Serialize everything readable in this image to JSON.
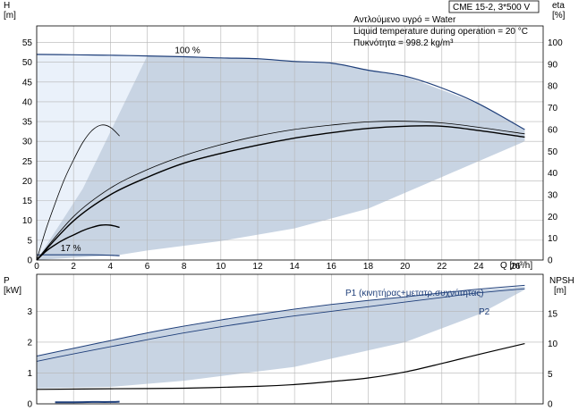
{
  "chart_data": [
    {
      "type": "line",
      "panel": "head-efficiency",
      "title_box": "CME 15-2, 3*500 V",
      "info": [
        "Αντλούμενο υγρό = Water",
        "Liquid temperature during operation = 20 °C",
        "Πυκνότητα = 998.2 kg/m³"
      ],
      "xlabel": "Q [m³/h]",
      "ylabel_left": [
        "H",
        "[m]"
      ],
      "ylabel_right": [
        "eta",
        "[%]"
      ],
      "x_ticks": [
        0,
        2,
        4,
        6,
        8,
        10,
        12,
        14,
        16,
        18,
        20,
        22,
        24,
        26
      ],
      "xlim": [
        0,
        27.5
      ],
      "y_left_ticks": [
        0,
        5,
        10,
        15,
        20,
        25,
        30,
        35,
        40,
        45,
        50,
        55
      ],
      "ylim_left": [
        0,
        59.2
      ],
      "y_right_ticks": [
        0,
        10,
        20,
        30,
        40,
        50,
        60,
        70,
        80,
        90,
        100
      ],
      "ylim_right": [
        0,
        107.6
      ],
      "grid": true,
      "annotations": [
        {
          "text": "100 %",
          "x": 7.5,
          "y": 52.3
        },
        {
          "text": "17 %",
          "x": 1.3,
          "y": 2.3
        }
      ],
      "region_light": [
        [
          0,
          0
        ],
        [
          0,
          52
        ],
        [
          6,
          51.6
        ],
        [
          2.5,
          18
        ],
        [
          0,
          0
        ]
      ],
      "region_operating": [
        [
          0,
          0
        ],
        [
          0,
          52
        ],
        [
          6,
          51.6
        ],
        [
          12,
          51
        ],
        [
          16,
          49.8
        ],
        [
          20,
          46.5
        ],
        [
          24,
          39.5
        ],
        [
          26.5,
          33
        ],
        [
          26.5,
          30
        ],
        [
          22,
          21
        ],
        [
          18,
          13
        ],
        [
          14,
          8
        ],
        [
          10,
          4.8
        ],
        [
          6,
          2.4
        ],
        [
          4.5,
          1.3
        ],
        [
          0,
          0
        ]
      ],
      "series": [
        {
          "role": "head-max-speed",
          "x": [
            0,
            2,
            4,
            6,
            8,
            10,
            12,
            14,
            16,
            18,
            20,
            22,
            24,
            26.5
          ],
          "y": [
            52,
            51.9,
            51.8,
            51.6,
            51.4,
            51.1,
            50.9,
            50.2,
            49.8,
            48,
            46.5,
            43.5,
            39.5,
            33
          ]
        },
        {
          "role": "head-min-speed",
          "x": [
            0,
            1,
            2,
            3,
            4,
            4.5
          ],
          "y": [
            1.3,
            1.3,
            1.3,
            1.3,
            1.2,
            1.1
          ]
        },
        {
          "role": "efficiency-max",
          "x": [
            0,
            2,
            4,
            6,
            8,
            10,
            12,
            14,
            16,
            18,
            20,
            22,
            24,
            26.5
          ],
          "y": [
            0,
            18,
            30,
            38,
            44.5,
            49,
            52.8,
            56,
            58.5,
            60.5,
            61.5,
            61.5,
            59.5,
            56.5
          ]
        },
        {
          "role": "efficiency-pump",
          "x": [
            0,
            2,
            4,
            6,
            8,
            10,
            12,
            14,
            16,
            18,
            20,
            22,
            24,
            26.5
          ],
          "y": [
            0,
            20,
            33,
            41.5,
            48,
            53,
            57,
            60,
            62,
            63.5,
            63.8,
            63,
            61,
            58
          ]
        },
        {
          "role": "efficiency-min",
          "x": [
            0,
            0.5,
            1,
            1.5,
            2,
            2.5,
            3,
            3.5,
            4,
            4.5
          ],
          "y": [
            0,
            14,
            26,
            37,
            46,
            54,
            59.5,
            62,
            61,
            57
          ]
        },
        {
          "role": "efficiency-partial",
          "x": [
            0,
            0.5,
            1,
            1.5,
            2,
            2.5,
            3,
            3.5,
            4,
            4.5
          ],
          "y": [
            0,
            4,
            7,
            9.5,
            11.5,
            13.5,
            15,
            16,
            16,
            15
          ]
        }
      ]
    },
    {
      "type": "line",
      "panel": "power-npsh",
      "ylabel_left": [
        "P",
        "[kW]"
      ],
      "ylabel_right": [
        "NPSH",
        "[m]"
      ],
      "xlim": [
        0,
        27.5
      ],
      "y_left_ticks": [
        0,
        1,
        2,
        3
      ],
      "ylim_left": [
        0,
        4.2
      ],
      "y_right_ticks": [
        0,
        5,
        10,
        15
      ],
      "ylim_right": [
        0,
        21.5
      ],
      "grid": true,
      "region": [
        [
          0,
          1.55
        ],
        [
          6,
          2.3
        ],
        [
          12,
          2.9
        ],
        [
          18,
          3.35
        ],
        [
          22,
          3.6
        ],
        [
          26.5,
          3.8
        ],
        [
          26.5,
          3.7
        ],
        [
          24,
          2.9
        ],
        [
          20,
          2
        ],
        [
          14,
          1.2
        ],
        [
          8,
          0.75
        ],
        [
          4,
          0.55
        ],
        [
          0,
          0.5
        ],
        [
          0,
          1.55
        ]
      ],
      "series": [
        {
          "name": "P1 (κινητήρας+μετατρ.συχνότητας)",
          "x": [
            0,
            2,
            4,
            6,
            8,
            10,
            12,
            14,
            16,
            18,
            20,
            22,
            24,
            26.5
          ],
          "y": [
            1.55,
            1.8,
            2.05,
            2.3,
            2.52,
            2.72,
            2.9,
            3.07,
            3.22,
            3.35,
            3.47,
            3.6,
            3.72,
            3.84
          ]
        },
        {
          "name": "P2",
          "x": [
            0,
            2,
            4,
            6,
            8,
            10,
            12,
            14,
            16,
            18,
            20,
            22,
            24,
            26.5
          ],
          "y": [
            1.38,
            1.62,
            1.85,
            2.08,
            2.3,
            2.5,
            2.68,
            2.85,
            3,
            3.15,
            3.3,
            3.45,
            3.6,
            3.73
          ]
        },
        {
          "role": "npsh",
          "x": [
            0,
            4,
            8,
            12,
            14,
            16,
            18,
            20,
            22,
            24,
            26.5
          ],
          "y": [
            2.4,
            2.5,
            2.6,
            2.9,
            3.2,
            3.7,
            4.3,
            5.3,
            6.7,
            8.2,
            10
          ]
        },
        {
          "role": "power-min",
          "x": [
            1,
            2,
            3,
            4,
            4.5
          ],
          "y": [
            0.05,
            0.05,
            0.06,
            0.06,
            0.07
          ]
        }
      ]
    }
  ]
}
